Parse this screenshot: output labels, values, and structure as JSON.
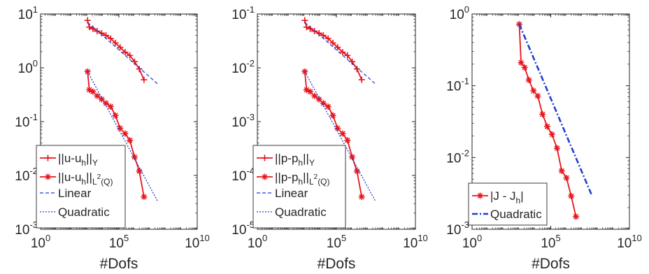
{
  "chart_data": [
    {
      "type": "line",
      "xscale": "log",
      "yscale": "log",
      "xlim": [
        1,
        10000000000
      ],
      "ylim": [
        0.001,
        10
      ],
      "xlabel": "#Dofs",
      "ylabel": "",
      "xticks": [
        1,
        100000,
        10000000000
      ],
      "yticks": [
        0.001,
        0.01,
        0.1,
        1,
        10
      ],
      "xtick_labels": [
        {
          "base": "10",
          "exp": "0"
        },
        {
          "base": "10",
          "exp": "5"
        },
        {
          "base": "10",
          "exp": "10"
        }
      ],
      "ytick_labels": [
        {
          "base": "10",
          "exp": "-3"
        },
        {
          "base": "10",
          "exp": "-2"
        },
        {
          "base": "10",
          "exp": "-1"
        },
        {
          "base": "10",
          "exp": "0"
        },
        {
          "base": "10",
          "exp": "1"
        }
      ],
      "grid": false,
      "legend_position": "bottom-left",
      "series": [
        {
          "name": "||u-u_h||_Y",
          "legend": [
            {
              "t": "||u-u"
            },
            {
              "t": "h",
              "sub": true
            },
            {
              "t": "||"
            },
            {
              "t": "Y",
              "sub": true
            }
          ],
          "color": "#e8141c",
          "style": "solid",
          "marker": "plus",
          "x": [
            1000,
            1300,
            2200,
            4100,
            8000,
            15000,
            30000,
            60000,
            120000,
            250000,
            500000,
            1000000,
            2000000,
            4000000
          ],
          "y": [
            7.6,
            5.7,
            5.3,
            4.8,
            4.4,
            4.0,
            3.5,
            2.9,
            2.4,
            1.95,
            1.7,
            1.3,
            0.95,
            0.6
          ]
        },
        {
          "name": "||u-u_h||_L2(Q)",
          "legend": [
            {
              "t": "||u-u"
            },
            {
              "t": "h",
              "sub": true
            },
            {
              "t": "||"
            },
            {
              "t": "L",
              "sub": true
            },
            {
              "t": "2",
              "subsup": true
            },
            {
              "t": "(Q)",
              "sub": true
            }
          ],
          "color": "#e8141c",
          "style": "solid",
          "marker": "star",
          "x": [
            1000,
            1300,
            2200,
            4100,
            8000,
            15000,
            30000,
            60000,
            120000,
            250000,
            500000,
            1000000,
            2000000,
            4000000
          ],
          "y": [
            0.85,
            0.39,
            0.36,
            0.3,
            0.26,
            0.22,
            0.19,
            0.13,
            0.075,
            0.06,
            0.045,
            0.022,
            0.012,
            0.004
          ]
        },
        {
          "name": "Linear",
          "legend": [
            {
              "t": "Linear"
            }
          ],
          "color": "#1f3fd1",
          "style": "dashed",
          "marker": "none",
          "x": [
            1000,
            30000000
          ],
          "y": [
            7.0,
            0.5
          ]
        },
        {
          "name": "Quadratic",
          "legend": [
            {
              "t": "Quadratic"
            }
          ],
          "color": "#1f3fd1",
          "style": "dotted",
          "marker": "none",
          "x": [
            1000,
            30000000
          ],
          "y": [
            0.85,
            0.0033
          ]
        }
      ]
    },
    {
      "type": "line",
      "xscale": "log",
      "yscale": "log",
      "xlim": [
        1,
        10000000000
      ],
      "ylim": [
        1e-05,
        0.1
      ],
      "xlabel": "#Dofs",
      "ylabel": "",
      "xticks": [
        1,
        100000,
        10000000000
      ],
      "yticks": [
        1e-05,
        0.0001,
        0.001,
        0.01,
        0.1
      ],
      "xtick_labels": [
        {
          "base": "10",
          "exp": "0"
        },
        {
          "base": "10",
          "exp": "5"
        },
        {
          "base": "10",
          "exp": "10"
        }
      ],
      "ytick_labels": [
        {
          "base": "10",
          "exp": "-5"
        },
        {
          "base": "10",
          "exp": "-4"
        },
        {
          "base": "10",
          "exp": "-3"
        },
        {
          "base": "10",
          "exp": "-2"
        },
        {
          "base": "10",
          "exp": "-1"
        }
      ],
      "grid": false,
      "legend_position": "bottom-left",
      "series": [
        {
          "name": "||p-p_h||_Y",
          "legend": [
            {
              "t": "||p-p"
            },
            {
              "t": "h",
              "sub": true
            },
            {
              "t": "||"
            },
            {
              "t": "Y",
              "sub": true
            }
          ],
          "color": "#e8141c",
          "style": "solid",
          "marker": "plus",
          "x": [
            1000,
            1300,
            2200,
            4100,
            8000,
            15000,
            30000,
            60000,
            120000,
            250000,
            500000,
            1000000,
            2000000,
            4000000
          ],
          "y": [
            0.076,
            0.057,
            0.053,
            0.048,
            0.044,
            0.04,
            0.035,
            0.029,
            0.024,
            0.0195,
            0.017,
            0.013,
            0.0095,
            0.006
          ]
        },
        {
          "name": "||p-p_h||_L2(Q)",
          "legend": [
            {
              "t": "||p-p"
            },
            {
              "t": "h",
              "sub": true
            },
            {
              "t": "||"
            },
            {
              "t": "L",
              "sub": true
            },
            {
              "t": "2",
              "subsup": true
            },
            {
              "t": "(Q)",
              "sub": true
            }
          ],
          "color": "#e8141c",
          "style": "solid",
          "marker": "star",
          "x": [
            1000,
            1300,
            2200,
            4100,
            8000,
            15000,
            30000,
            60000,
            120000,
            250000,
            500000,
            1000000,
            2000000,
            4000000
          ],
          "y": [
            0.0085,
            0.0039,
            0.0036,
            0.003,
            0.0026,
            0.0022,
            0.0019,
            0.0013,
            0.00075,
            0.0006,
            0.00045,
            0.00022,
            0.00012,
            4e-05
          ]
        },
        {
          "name": "Linear",
          "legend": [
            {
              "t": "Linear"
            }
          ],
          "color": "#1f3fd1",
          "style": "dashed",
          "marker": "none",
          "x": [
            1000,
            30000000
          ],
          "y": [
            0.07,
            0.005
          ]
        },
        {
          "name": "Quadratic",
          "legend": [
            {
              "t": "Quadratic"
            }
          ],
          "color": "#1f3fd1",
          "style": "dotted",
          "marker": "none",
          "x": [
            1000,
            30000000
          ],
          "y": [
            0.0085,
            3.3e-05
          ]
        }
      ]
    },
    {
      "type": "line",
      "xscale": "log",
      "yscale": "log",
      "xlim": [
        1,
        10000000000
      ],
      "ylim": [
        0.001,
        1
      ],
      "xlabel": "#Dofs",
      "ylabel": "",
      "xticks": [
        1,
        100000,
        10000000000
      ],
      "yticks": [
        0.001,
        0.01,
        0.1,
        1
      ],
      "xtick_labels": [
        {
          "base": "10",
          "exp": "0"
        },
        {
          "base": "10",
          "exp": "5"
        },
        {
          "base": "10",
          "exp": "10"
        }
      ],
      "ytick_labels": [
        {
          "base": "10",
          "exp": "-3"
        },
        {
          "base": "10",
          "exp": "-2"
        },
        {
          "base": "10",
          "exp": "-1"
        },
        {
          "base": "10",
          "exp": "0"
        }
      ],
      "grid": false,
      "legend_position": "bottom-right",
      "series": [
        {
          "name": "|J - J_h|",
          "legend": [
            {
              "t": "|J - J"
            },
            {
              "t": "h",
              "sub": true
            },
            {
              "t": "|"
            }
          ],
          "color": "#e8141c",
          "style": "solid",
          "marker": "star",
          "x": [
            1000,
            1300,
            2200,
            4100,
            8000,
            15000,
            30000,
            60000,
            120000,
            250000,
            500000,
            1000000,
            2000000,
            4000000
          ],
          "y": [
            0.72,
            0.21,
            0.18,
            0.12,
            0.085,
            0.072,
            0.04,
            0.027,
            0.021,
            0.0135,
            0.0065,
            0.0052,
            0.0029,
            0.0015
          ]
        },
        {
          "name": "Quadratic",
          "legend": [
            {
              "t": "Quadratic"
            }
          ],
          "color": "#1f3fd1",
          "style": "dashdot",
          "marker": "none",
          "x": [
            1000,
            40000000
          ],
          "y": [
            0.72,
            0.003
          ]
        }
      ]
    }
  ]
}
